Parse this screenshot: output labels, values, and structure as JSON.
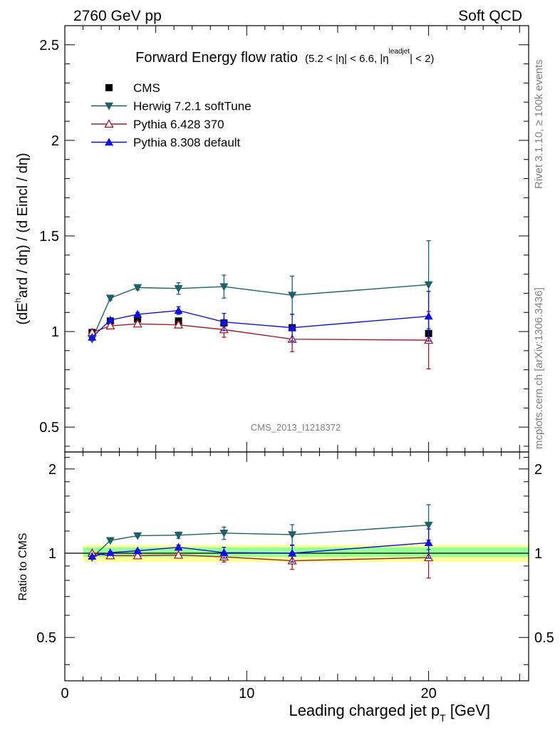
{
  "header": {
    "left": "2760 GeV pp",
    "right": "Soft QCD"
  },
  "side": {
    "rivet": "Rivet 3.1.10, ≥ 100k events",
    "mcplots": "mcplots.cern.ch [arXiv:1306.3436]"
  },
  "chart_data": [
    {
      "type": "scatter",
      "title": "Forward Energy flow ratio",
      "title_cut": "(5.2 < |η| < 6.6, |η",
      "title_cut_sup": "leadjet",
      "title_cut_end": "| < 2)",
      "ylabel": "(dE^hard / dη) / (d Eincl / dη)",
      "ylabel_parts": {
        "a": "(dE",
        "sup": "h",
        "b": "ard / dη) / (d E",
        "c": "incl / dη)"
      },
      "watermark": "CMS_2013_I1218372",
      "xlim": [
        0,
        25.5
      ],
      "ylim": [
        0.37,
        2.6
      ],
      "yticks": [
        0.5,
        1,
        1.5,
        2,
        2.5
      ],
      "ytick_labels": [
        "0.5",
        "1",
        "1.5",
        "2",
        "2.5"
      ],
      "legend_position": "top-left",
      "series": [
        {
          "name": "CMS",
          "color": "#000000",
          "marker": "square",
          "x": [
            1.5,
            2.5,
            4.0,
            6.25,
            8.75,
            12.5,
            20.0
          ],
          "y": [
            0.995,
            1.055,
            1.065,
            1.055,
            1.045,
            1.02,
            0.99
          ],
          "yerr": [
            0.0,
            0.0,
            0.0,
            0.0,
            0.0,
            0.0,
            0.0
          ]
        },
        {
          "name": "Herwig 7.2.1 softTune",
          "color": "#1f5f66",
          "marker": "triangle-down",
          "x": [
            1.5,
            2.5,
            4.0,
            6.25,
            8.75,
            12.5,
            20.0
          ],
          "y": [
            0.96,
            1.175,
            1.23,
            1.225,
            1.235,
            1.19,
            1.245
          ],
          "yerr": [
            0.008,
            0.01,
            0.012,
            0.03,
            0.06,
            0.1,
            0.23
          ]
        },
        {
          "name": "Pythia 6.428 370",
          "color": "#a01c2c",
          "marker": "triangle-open",
          "x": [
            1.5,
            2.5,
            4.0,
            6.25,
            8.75,
            12.5,
            20.0
          ],
          "y": [
            0.995,
            1.03,
            1.04,
            1.035,
            1.01,
            0.96,
            0.955
          ],
          "yerr": [
            0.006,
            0.008,
            0.01,
            0.015,
            0.04,
            0.065,
            0.15
          ]
        },
        {
          "name": "Pythia 8.308 default",
          "color": "#1010e0",
          "marker": "triangle",
          "x": [
            1.5,
            2.5,
            4.0,
            6.25,
            8.75,
            12.5,
            20.0
          ],
          "y": [
            0.97,
            1.06,
            1.09,
            1.11,
            1.05,
            1.02,
            1.08
          ],
          "yerr": [
            0.006,
            0.008,
            0.01,
            0.02,
            0.045,
            0.07,
            0.13
          ]
        }
      ]
    },
    {
      "type": "scatter",
      "ylabel": "Ratio to CMS",
      "xlabel": "Leading charged jet p",
      "xlabel_sub": "T",
      "xlabel_unit": " [GeV]",
      "xlim": [
        0,
        25.5
      ],
      "ylim": [
        0.35,
        2.3
      ],
      "xticks": [
        0,
        10,
        20
      ],
      "xtick_labels": [
        "0",
        "10",
        "20"
      ],
      "yticks": [
        0.5,
        1,
        2
      ],
      "ytick_labels": [
        "0.5",
        "1",
        "2"
      ],
      "band": {
        "x": [
          1.0,
          25.5
        ],
        "inner": [
          0.97,
          1.05
        ],
        "outer": [
          0.93,
          1.07
        ],
        "inner_color": "#99ff99",
        "outer_color": "#ffff99"
      },
      "series": [
        {
          "name": "Herwig 7.2.1 softTune",
          "color": "#1f5f66",
          "marker": "triangle-down",
          "x": [
            1.5,
            2.5,
            4.0,
            6.25,
            8.75,
            12.5,
            20.0
          ],
          "y": [
            0.965,
            1.11,
            1.155,
            1.16,
            1.18,
            1.165,
            1.26
          ],
          "yerr": [
            0.008,
            0.01,
            0.012,
            0.03,
            0.06,
            0.1,
            0.23
          ]
        },
        {
          "name": "Pythia 6.428 370",
          "color": "#a01c2c",
          "marker": "triangle-open",
          "x": [
            1.5,
            2.5,
            4.0,
            6.25,
            8.75,
            12.5,
            20.0
          ],
          "y": [
            1.0,
            0.98,
            0.98,
            0.985,
            0.97,
            0.94,
            0.965
          ],
          "yerr": [
            0.006,
            0.008,
            0.01,
            0.015,
            0.04,
            0.065,
            0.15
          ]
        },
        {
          "name": "Pythia 8.308 default",
          "color": "#1010e0",
          "marker": "triangle",
          "x": [
            1.5,
            2.5,
            4.0,
            6.25,
            8.75,
            12.5,
            20.0
          ],
          "y": [
            0.975,
            1.005,
            1.02,
            1.05,
            1.005,
            1.0,
            1.09
          ],
          "yerr": [
            0.006,
            0.008,
            0.01,
            0.02,
            0.045,
            0.07,
            0.13
          ]
        }
      ]
    }
  ]
}
